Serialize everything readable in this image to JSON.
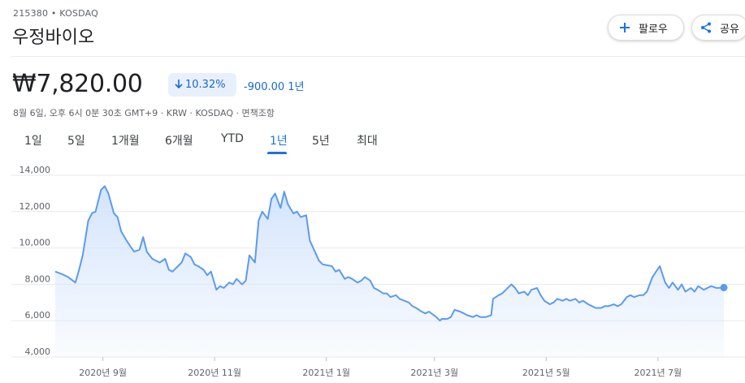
{
  "header": {
    "ticker": "215380 • KOSDAQ",
    "company": "우정바이오",
    "follow_label": "팔로우",
    "share_label": "공유"
  },
  "quote": {
    "price": "₩7,820.00",
    "change_pct": "10.32%",
    "change_abs": "-900.00",
    "period": "1년",
    "meta": "8월 6일, 오후 6시 0분 30초 GMT+9 · KRW · KOSDAQ · 면책조항"
  },
  "tabs": [
    {
      "label": "1일"
    },
    {
      "label": "5일"
    },
    {
      "label": "1개월"
    },
    {
      "label": "6개월"
    },
    {
      "label": "YTD"
    },
    {
      "label": "1년",
      "active": true
    },
    {
      "label": "5년"
    },
    {
      "label": "최대"
    }
  ],
  "colors": {
    "line": "#5b9bf0",
    "fill_top": "#d2e3fc",
    "accent": "#1a73e8",
    "negative": "#1967d2"
  },
  "chart_data": {
    "type": "area",
    "title": "",
    "xlabel": "",
    "ylabel": "",
    "ylim": [
      4000,
      14000
    ],
    "yticks": [
      4000,
      6000,
      8000,
      10000,
      12000,
      14000
    ],
    "ytick_labels": [
      "4,000",
      "6,000",
      "8,000",
      "10,000",
      "12,000",
      "14,000"
    ],
    "xtick_labels": [
      {
        "label": "2020년 9월",
        "date": "2020-09-01"
      },
      {
        "label": "2020년 11월",
        "date": "2020-11-01"
      },
      {
        "label": "2021년 1월",
        "date": "2021-01-01"
      },
      {
        "label": "2021년 3월",
        "date": "2021-03-01"
      },
      {
        "label": "2021년 5월",
        "date": "2021-05-01"
      },
      {
        "label": "2021년 7월",
        "date": "2021-07-01"
      }
    ],
    "grid": true,
    "x_start": "2020-08-06",
    "x_end": "2021-08-06",
    "series": [
      {
        "values": [
          [
            "2020-08-06",
            8700
          ],
          [
            "2020-08-10",
            8550
          ],
          [
            "2020-08-13",
            8400
          ],
          [
            "2020-08-17",
            8100
          ],
          [
            "2020-08-19",
            8800
          ],
          [
            "2020-08-21",
            9600
          ],
          [
            "2020-08-24",
            11500
          ],
          [
            "2020-08-26",
            11900
          ],
          [
            "2020-08-28",
            12000
          ],
          [
            "2020-08-31",
            13200
          ],
          [
            "2020-09-02",
            13400
          ],
          [
            "2020-09-04",
            13000
          ],
          [
            "2020-09-07",
            11900
          ],
          [
            "2020-09-09",
            11700
          ],
          [
            "2020-09-11",
            10900
          ],
          [
            "2020-09-14",
            10400
          ],
          [
            "2020-09-16",
            10100
          ],
          [
            "2020-09-18",
            9800
          ],
          [
            "2020-09-21",
            9900
          ],
          [
            "2020-09-23",
            10600
          ],
          [
            "2020-09-25",
            9800
          ],
          [
            "2020-09-28",
            9400
          ],
          [
            "2020-10-02",
            9200
          ],
          [
            "2020-10-05",
            9400
          ],
          [
            "2020-10-07",
            8800
          ],
          [
            "2020-10-09",
            8700
          ],
          [
            "2020-10-12",
            9000
          ],
          [
            "2020-10-14",
            9200
          ],
          [
            "2020-10-16",
            9700
          ],
          [
            "2020-10-19",
            9500
          ],
          [
            "2020-10-21",
            9100
          ],
          [
            "2020-10-23",
            9000
          ],
          [
            "2020-10-26",
            8800
          ],
          [
            "2020-10-28",
            8500
          ],
          [
            "2020-10-30",
            8700
          ],
          [
            "2020-11-02",
            7700
          ],
          [
            "2020-11-04",
            7900
          ],
          [
            "2020-11-06",
            7800
          ],
          [
            "2020-11-09",
            8100
          ],
          [
            "2020-11-11",
            8000
          ],
          [
            "2020-11-13",
            8300
          ],
          [
            "2020-11-16",
            8000
          ],
          [
            "2020-11-18",
            8200
          ],
          [
            "2020-11-20",
            9600
          ],
          [
            "2020-11-23",
            9200
          ],
          [
            "2020-11-25",
            11500
          ],
          [
            "2020-11-27",
            12000
          ],
          [
            "2020-11-30",
            11600
          ],
          [
            "2020-12-02",
            12700
          ],
          [
            "2020-12-04",
            13000
          ],
          [
            "2020-12-07",
            12200
          ],
          [
            "2020-12-09",
            13100
          ],
          [
            "2020-12-11",
            12400
          ],
          [
            "2020-12-14",
            11900
          ],
          [
            "2020-12-16",
            12000
          ],
          [
            "2020-12-18",
            11700
          ],
          [
            "2020-12-21",
            11800
          ],
          [
            "2020-12-23",
            10400
          ],
          [
            "2020-12-28",
            9300
          ],
          [
            "2020-12-30",
            9100
          ],
          [
            "2021-01-04",
            9000
          ],
          [
            "2021-01-06",
            8700
          ],
          [
            "2021-01-08",
            8800
          ],
          [
            "2021-01-11",
            8300
          ],
          [
            "2021-01-13",
            8400
          ],
          [
            "2021-01-15",
            8300
          ],
          [
            "2021-01-18",
            8100
          ],
          [
            "2021-01-20",
            8200
          ],
          [
            "2021-01-22",
            8400
          ],
          [
            "2021-01-25",
            8200
          ],
          [
            "2021-01-27",
            7800
          ],
          [
            "2021-01-29",
            7700
          ],
          [
            "2021-02-01",
            7500
          ],
          [
            "2021-02-03",
            7500
          ],
          [
            "2021-02-05",
            7300
          ],
          [
            "2021-02-08",
            7400
          ],
          [
            "2021-02-10",
            7200
          ],
          [
            "2021-02-15",
            7000
          ],
          [
            "2021-02-17",
            6800
          ],
          [
            "2021-02-19",
            6700
          ],
          [
            "2021-02-22",
            6500
          ],
          [
            "2021-02-24",
            6400
          ],
          [
            "2021-02-26",
            6500
          ],
          [
            "2021-03-02",
            6200
          ],
          [
            "2021-03-04",
            6000
          ],
          [
            "2021-03-05",
            6100
          ],
          [
            "2021-03-08",
            6100
          ],
          [
            "2021-03-10",
            6200
          ],
          [
            "2021-03-12",
            6600
          ],
          [
            "2021-03-15",
            6500
          ],
          [
            "2021-03-17",
            6400
          ],
          [
            "2021-03-19",
            6300
          ],
          [
            "2021-03-22",
            6200
          ],
          [
            "2021-03-24",
            6300
          ],
          [
            "2021-03-26",
            6200
          ],
          [
            "2021-03-29",
            6200
          ],
          [
            "2021-04-01",
            6300
          ],
          [
            "2021-04-02",
            7200
          ],
          [
            "2021-04-05",
            7400
          ],
          [
            "2021-04-07",
            7500
          ],
          [
            "2021-04-09",
            7700
          ],
          [
            "2021-04-12",
            8000
          ],
          [
            "2021-04-14",
            7800
          ],
          [
            "2021-04-16",
            7500
          ],
          [
            "2021-04-19",
            7600
          ],
          [
            "2021-04-21",
            7400
          ],
          [
            "2021-04-23",
            7700
          ],
          [
            "2021-04-26",
            7800
          ],
          [
            "2021-04-28",
            7400
          ],
          [
            "2021-04-30",
            7100
          ],
          [
            "2021-05-03",
            6900
          ],
          [
            "2021-05-05",
            7000
          ],
          [
            "2021-05-07",
            7200
          ],
          [
            "2021-05-10",
            7100
          ],
          [
            "2021-05-12",
            7200
          ],
          [
            "2021-05-14",
            7100
          ],
          [
            "2021-05-17",
            7200
          ],
          [
            "2021-05-19",
            7000
          ],
          [
            "2021-05-21",
            7100
          ],
          [
            "2021-05-24",
            6900
          ],
          [
            "2021-05-26",
            6800
          ],
          [
            "2021-05-28",
            6700
          ],
          [
            "2021-05-31",
            6700
          ],
          [
            "2021-06-02",
            6800
          ],
          [
            "2021-06-04",
            6800
          ],
          [
            "2021-06-07",
            6900
          ],
          [
            "2021-06-09",
            6800
          ],
          [
            "2021-06-11",
            6900
          ],
          [
            "2021-06-14",
            7300
          ],
          [
            "2021-06-16",
            7400
          ],
          [
            "2021-06-18",
            7300
          ],
          [
            "2021-06-21",
            7400
          ],
          [
            "2021-06-23",
            7400
          ],
          [
            "2021-06-25",
            7600
          ],
          [
            "2021-06-28",
            8400
          ],
          [
            "2021-06-30",
            8700
          ],
          [
            "2021-07-02",
            9000
          ],
          [
            "2021-07-05",
            8100
          ],
          [
            "2021-07-07",
            7800
          ],
          [
            "2021-07-09",
            8100
          ],
          [
            "2021-07-12",
            7700
          ],
          [
            "2021-07-14",
            8000
          ],
          [
            "2021-07-16",
            7600
          ],
          [
            "2021-07-19",
            7800
          ],
          [
            "2021-07-21",
            7600
          ],
          [
            "2021-07-23",
            7900
          ],
          [
            "2021-07-26",
            7700
          ],
          [
            "2021-07-28",
            7800
          ],
          [
            "2021-07-30",
            7900
          ],
          [
            "2021-08-02",
            7800
          ],
          [
            "2021-08-06",
            7820
          ]
        ]
      }
    ]
  }
}
